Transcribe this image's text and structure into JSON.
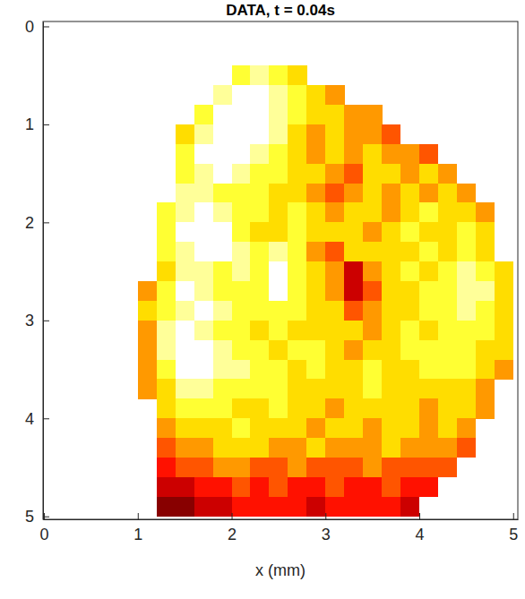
{
  "chart_data": {
    "type": "heatmap",
    "title": "DATA, t = 0.04s",
    "x_label": "x (mm)",
    "color": "hot",
    "zlim": [
      0,
      10
    ],
    "xlim": [
      -0.01,
      5.05
    ],
    "ylim": [
      -0.05,
      5.03
    ],
    "xticks": [
      0,
      1,
      2,
      3,
      4,
      5
    ],
    "yticks": [
      0,
      1,
      2,
      3,
      4,
      5
    ],
    "x": [
      0.1,
      0.3,
      0.5,
      0.7,
      0.9,
      1.1,
      1.3,
      1.5,
      1.7,
      1.9,
      2.1,
      2.3,
      2.5,
      2.7,
      2.9,
      3.1,
      3.3,
      3.5,
      3.7,
      3.9,
      4.1,
      4.3,
      4.5,
      4.7,
      4.9
    ],
    "y": [
      0.1,
      0.3,
      0.5,
      0.7,
      0.9,
      1.1,
      1.3,
      1.5,
      1.7,
      1.9,
      2.1,
      2.3,
      2.5,
      2.7,
      2.9,
      3.1,
      3.3,
      3.5,
      3.7,
      3.9,
      4.1,
      4.3,
      4.5,
      4.7,
      4.9
    ],
    "z": [
      [
        null,
        null,
        null,
        null,
        null,
        null,
        null,
        null,
        null,
        null,
        null,
        null,
        null,
        null,
        null,
        null,
        null,
        null,
        null,
        null,
        null,
        null,
        null,
        null,
        null
      ],
      [
        null,
        null,
        null,
        null,
        null,
        null,
        null,
        null,
        null,
        null,
        null,
        null,
        null,
        null,
        null,
        null,
        null,
        null,
        null,
        null,
        null,
        null,
        null,
        null,
        null
      ],
      [
        null,
        null,
        null,
        null,
        null,
        null,
        null,
        null,
        null,
        null,
        8,
        9,
        8,
        7,
        null,
        null,
        null,
        null,
        null,
        null,
        null,
        null,
        null,
        null,
        null
      ],
      [
        null,
        null,
        null,
        null,
        null,
        null,
        null,
        null,
        null,
        9,
        10,
        10,
        9,
        8,
        7,
        6,
        null,
        null,
        null,
        null,
        null,
        null,
        null,
        null,
        null
      ],
      [
        null,
        null,
        null,
        null,
        null,
        null,
        null,
        null,
        8,
        10,
        10,
        10,
        9,
        8,
        7,
        7,
        6,
        6,
        null,
        null,
        null,
        null,
        null,
        null,
        null
      ],
      [
        null,
        null,
        null,
        null,
        null,
        null,
        null,
        7,
        9,
        10,
        10,
        10,
        9,
        7,
        6,
        7,
        6,
        6,
        5,
        null,
        null,
        null,
        null,
        null,
        null
      ],
      [
        null,
        null,
        null,
        null,
        null,
        null,
        null,
        8,
        10,
        10,
        10,
        9,
        8,
        7,
        6,
        7,
        6,
        7,
        6,
        6,
        5,
        null,
        null,
        null,
        null
      ],
      [
        null,
        null,
        null,
        null,
        null,
        null,
        null,
        8,
        9,
        10,
        9,
        8,
        8,
        7,
        7,
        6,
        5,
        7,
        7,
        6,
        7,
        6,
        null,
        null,
        null
      ],
      [
        null,
        null,
        null,
        null,
        null,
        null,
        null,
        9,
        9,
        8,
        8,
        8,
        7,
        7,
        6,
        5,
        6,
        7,
        6,
        7,
        6,
        7,
        6,
        null,
        null
      ],
      [
        null,
        null,
        null,
        null,
        null,
        null,
        8,
        9,
        10,
        9,
        8,
        8,
        7,
        8,
        7,
        6,
        7,
        7,
        6,
        7,
        8,
        7,
        7,
        6,
        null
      ],
      [
        null,
        null,
        null,
        null,
        null,
        null,
        8,
        10,
        10,
        10,
        8,
        7,
        7,
        8,
        7,
        7,
        7,
        6,
        7,
        8,
        7,
        7,
        8,
        7,
        null
      ],
      [
        null,
        null,
        null,
        null,
        null,
        null,
        8,
        9,
        10,
        10,
        9,
        8,
        9,
        8,
        6,
        5,
        7,
        7,
        7,
        7,
        8,
        7,
        8,
        7,
        null
      ],
      [
        null,
        null,
        null,
        null,
        null,
        null,
        7,
        9,
        9,
        8,
        9,
        8,
        10,
        8,
        7,
        6,
        3,
        6,
        7,
        8,
        7,
        8,
        9,
        8,
        7
      ],
      [
        null,
        null,
        null,
        null,
        null,
        6,
        8,
        10,
        9,
        8,
        8,
        8,
        10,
        8,
        7,
        6,
        3,
        5,
        7,
        7,
        8,
        8,
        9,
        9,
        7
      ],
      [
        null,
        null,
        null,
        null,
        null,
        7,
        8,
        9,
        10,
        9,
        8,
        8,
        8,
        8,
        7,
        7,
        5,
        6,
        7,
        7,
        8,
        8,
        9,
        8,
        7
      ],
      [
        null,
        null,
        null,
        null,
        null,
        6,
        9,
        10,
        9,
        8,
        8,
        7,
        8,
        7,
        7,
        7,
        7,
        6,
        7,
        8,
        7,
        8,
        8,
        8,
        7
      ],
      [
        null,
        null,
        null,
        null,
        null,
        6,
        9,
        10,
        10,
        9,
        8,
        8,
        7,
        8,
        8,
        7,
        6,
        7,
        7,
        8,
        8,
        8,
        8,
        7,
        7
      ],
      [
        null,
        null,
        null,
        null,
        null,
        6,
        8,
        10,
        10,
        9,
        9,
        8,
        8,
        7,
        8,
        7,
        7,
        8,
        7,
        7,
        8,
        8,
        8,
        7,
        6
      ],
      [
        null,
        null,
        null,
        null,
        null,
        6,
        7,
        9,
        9,
        8,
        8,
        8,
        8,
        7,
        7,
        7,
        7,
        8,
        7,
        7,
        7,
        7,
        7,
        6,
        null
      ],
      [
        null,
        null,
        null,
        null,
        null,
        null,
        7,
        8,
        8,
        8,
        7,
        7,
        8,
        7,
        7,
        6,
        7,
        7,
        7,
        7,
        6,
        7,
        7,
        6,
        null
      ],
      [
        null,
        null,
        null,
        null,
        null,
        null,
        6,
        7,
        7,
        7,
        8,
        7,
        7,
        7,
        6,
        7,
        7,
        6,
        7,
        7,
        6,
        7,
        6,
        null,
        null
      ],
      [
        null,
        null,
        null,
        null,
        null,
        null,
        5,
        6,
        6,
        7,
        7,
        7,
        6,
        6,
        7,
        6,
        6,
        6,
        7,
        6,
        6,
        6,
        5,
        null,
        null
      ],
      [
        null,
        null,
        null,
        null,
        null,
        null,
        4,
        5,
        5,
        6,
        6,
        5,
        5,
        6,
        5,
        5,
        5,
        6,
        5,
        5,
        5,
        5,
        null,
        null,
        null
      ],
      [
        null,
        null,
        null,
        null,
        null,
        null,
        3,
        3,
        4,
        4,
        5,
        4,
        5,
        4,
        4,
        5,
        4,
        4,
        5,
        4,
        4,
        null,
        null,
        null,
        null
      ],
      [
        null,
        null,
        null,
        null,
        null,
        null,
        2,
        2,
        3,
        3,
        4,
        4,
        4,
        4,
        3,
        4,
        4,
        4,
        4,
        3,
        null,
        null,
        null,
        null,
        null
      ]
    ]
  }
}
